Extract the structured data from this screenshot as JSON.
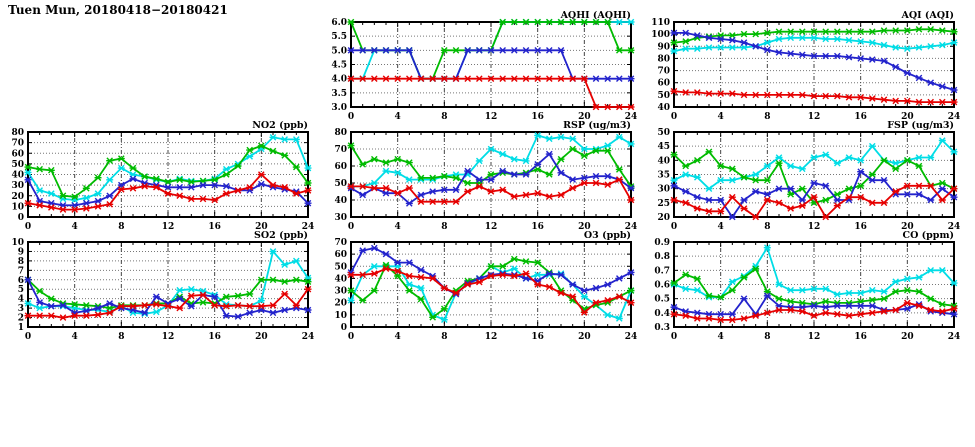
{
  "page_title": "Tuen Mun, 20180418−20180421",
  "colors": {
    "red": "#e60000",
    "green": "#00bb00",
    "blue": "#2323cc",
    "cyan": "#00dde6",
    "frame": "#000000",
    "hgrid": "#777777",
    "vgrid": "#444444",
    "background": "#ffffff"
  },
  "chart_data": [
    {
      "id": "aqhi",
      "type": "line",
      "title": "AQHI (AQHI)",
      "grid": {
        "col": 1,
        "row": 0
      },
      "x_range": [
        0,
        24
      ],
      "x_ticks": [
        0,
        4,
        8,
        12,
        16,
        20,
        24
      ],
      "y_range": [
        3.0,
        6.0
      ],
      "y_ticks": [
        3.0,
        3.5,
        4.0,
        4.5,
        5.0,
        5.5,
        6.0
      ],
      "y_decimals": 1,
      "series": [
        {
          "name": "cyan",
          "values": [
            4,
            4,
            5,
            5,
            5,
            5,
            4,
            4,
            4,
            4,
            5,
            5,
            5,
            6,
            6,
            6,
            6,
            6,
            6,
            6,
            6,
            6,
            6,
            6,
            6
          ]
        },
        {
          "name": "green",
          "values": [
            6,
            5,
            5,
            5,
            5,
            5,
            4,
            4,
            5,
            5,
            5,
            5,
            5,
            6,
            6,
            6,
            6,
            6,
            6,
            6,
            6,
            6,
            6,
            5,
            5
          ]
        },
        {
          "name": "blue",
          "values": [
            5,
            5,
            5,
            5,
            5,
            5,
            4,
            4,
            4,
            4,
            5,
            5,
            5,
            5,
            5,
            5,
            5,
            5,
            5,
            4,
            4,
            4,
            4,
            4,
            4
          ]
        },
        {
          "name": "red",
          "values": [
            4,
            4,
            4,
            4,
            4,
            4,
            4,
            4,
            4,
            4,
            4,
            4,
            4,
            4,
            4,
            4,
            4,
            4,
            4,
            4,
            4,
            3,
            3,
            3,
            3
          ]
        }
      ]
    },
    {
      "id": "aqi",
      "type": "line",
      "title": "AQI (AQI)",
      "grid": {
        "col": 2,
        "row": 0
      },
      "x_range": [
        0,
        24
      ],
      "x_ticks": [
        0,
        4,
        8,
        12,
        16,
        20,
        24
      ],
      "y_range": [
        40,
        110
      ],
      "y_ticks": [
        40,
        50,
        60,
        70,
        80,
        90,
        100,
        110
      ],
      "y_decimals": 0,
      "series": [
        {
          "name": "cyan",
          "values": [
            86,
            88,
            88,
            89,
            89,
            89,
            89,
            90,
            93,
            96,
            97,
            97,
            97,
            96,
            96,
            95,
            94,
            93,
            91,
            89,
            88,
            89,
            90,
            91,
            93
          ]
        },
        {
          "name": "green",
          "values": [
            93,
            94,
            97,
            98,
            99,
            99,
            100,
            100,
            101,
            102,
            102,
            102,
            102,
            102,
            102,
            102,
            102,
            102,
            103,
            103,
            103,
            104,
            104,
            103,
            102
          ]
        },
        {
          "name": "blue",
          "values": [
            101,
            101,
            99,
            97,
            96,
            95,
            93,
            90,
            87,
            85,
            84,
            83,
            82,
            82,
            82,
            81,
            80,
            79,
            78,
            73,
            68,
            64,
            60,
            57,
            54
          ]
        },
        {
          "name": "red",
          "values": [
            53,
            52,
            52,
            51,
            51,
            51,
            50,
            50,
            50,
            50,
            50,
            50,
            49,
            49,
            49,
            48,
            48,
            47,
            46,
            45,
            45,
            44,
            44,
            44,
            44
          ]
        }
      ]
    },
    {
      "id": "no2",
      "type": "line",
      "title": "NO2 (ppb)",
      "grid": {
        "col": 0,
        "row": 1
      },
      "x_range": [
        0,
        24
      ],
      "x_ticks": [
        0,
        4,
        8,
        12,
        16,
        20,
        24
      ],
      "y_range": [
        0,
        80
      ],
      "y_ticks": [
        0,
        10,
        20,
        30,
        40,
        50,
        60,
        70,
        80
      ],
      "y_decimals": 0,
      "series": [
        {
          "name": "cyan",
          "values": [
            42,
            25,
            22,
            17,
            16,
            18,
            22,
            35,
            46,
            40,
            38,
            35,
            33,
            36,
            34,
            34,
            36,
            45,
            50,
            57,
            64,
            75,
            73,
            73,
            46
          ]
        },
        {
          "name": "green",
          "values": [
            47,
            45,
            44,
            20,
            19,
            27,
            37,
            53,
            55,
            46,
            38,
            36,
            33,
            35,
            33,
            34,
            35,
            40,
            48,
            63,
            67,
            62,
            58,
            47,
            32
          ]
        },
        {
          "name": "blue",
          "values": [
            35,
            15,
            13,
            11,
            11,
            13,
            15,
            20,
            30,
            36,
            32,
            30,
            28,
            28,
            28,
            30,
            30,
            29,
            25,
            25,
            31,
            28,
            26,
            24,
            13
          ]
        },
        {
          "name": "red",
          "values": [
            13,
            11,
            9,
            7,
            7,
            8,
            10,
            12,
            26,
            27,
            29,
            28,
            22,
            20,
            17,
            17,
            16,
            22,
            25,
            28,
            40,
            30,
            28,
            22,
            25
          ]
        }
      ]
    },
    {
      "id": "rsp",
      "type": "line",
      "title": "RSP (ug/m3)",
      "grid": {
        "col": 1,
        "row": 1
      },
      "x_range": [
        0,
        24
      ],
      "x_ticks": [
        0,
        4,
        8,
        12,
        16,
        20,
        24
      ],
      "y_range": [
        30,
        80
      ],
      "y_ticks": [
        30,
        40,
        50,
        60,
        70,
        80
      ],
      "y_decimals": 0,
      "series": [
        {
          "name": "cyan",
          "values": [
            48,
            48,
            50,
            57,
            56,
            52,
            52,
            52,
            54,
            55,
            55,
            63,
            70,
            67,
            64,
            63,
            78,
            76,
            77,
            76,
            70,
            70,
            72,
            77,
            73
          ]
        },
        {
          "name": "green",
          "values": [
            72,
            61,
            64,
            62,
            64,
            62,
            53,
            53,
            54,
            53,
            50,
            50,
            55,
            56,
            55,
            56,
            58,
            55,
            64,
            70,
            66,
            69,
            69,
            58,
            48
          ]
        },
        {
          "name": "blue",
          "values": [
            47,
            43,
            47,
            44,
            44,
            38,
            43,
            45,
            46,
            46,
            57,
            52,
            52,
            57,
            55,
            55,
            61,
            67,
            56,
            52,
            53,
            54,
            54,
            52,
            47
          ]
        },
        {
          "name": "red",
          "values": [
            48,
            48,
            47,
            47,
            44,
            47,
            39,
            39,
            39,
            39,
            45,
            48,
            45,
            46,
            42,
            43,
            44,
            42,
            43,
            47,
            50,
            50,
            49,
            52,
            40
          ]
        }
      ]
    },
    {
      "id": "fsp",
      "type": "line",
      "title": "FSP (ug/m3)",
      "grid": {
        "col": 2,
        "row": 1
      },
      "x_range": [
        0,
        24
      ],
      "x_ticks": [
        0,
        4,
        8,
        12,
        16,
        20,
        24
      ],
      "y_range": [
        20,
        50
      ],
      "y_ticks": [
        20,
        25,
        30,
        35,
        40,
        45,
        50
      ],
      "y_decimals": 0,
      "series": [
        {
          "name": "cyan",
          "values": [
            33,
            35,
            34,
            30,
            33,
            33,
            34,
            35,
            38,
            41,
            38,
            37,
            41,
            42,
            39,
            41,
            40,
            45,
            40,
            39,
            40,
            41,
            41,
            47,
            43
          ]
        },
        {
          "name": "green",
          "values": [
            42,
            38,
            40,
            43,
            38,
            37,
            34,
            33,
            33,
            39,
            28,
            30,
            25,
            26,
            28,
            30,
            31,
            35,
            40,
            37,
            40,
            38,
            31,
            32,
            30
          ]
        },
        {
          "name": "blue",
          "values": [
            31,
            29,
            27,
            26,
            26,
            20,
            26,
            29,
            28,
            30,
            30,
            26,
            32,
            31,
            26,
            26,
            36,
            33,
            33,
            28,
            28,
            28,
            26,
            30,
            27
          ]
        },
        {
          "name": "red",
          "values": [
            26,
            25,
            23,
            22,
            22,
            27,
            23,
            20,
            26,
            25,
            23,
            24,
            27,
            20,
            24,
            27,
            27,
            25,
            25,
            29,
            31,
            31,
            31,
            26,
            30
          ]
        }
      ]
    },
    {
      "id": "so2",
      "type": "line",
      "title": "SO2 (ppb)",
      "grid": {
        "col": 0,
        "row": 2
      },
      "x_range": [
        0,
        24
      ],
      "x_ticks": [
        0,
        4,
        8,
        12,
        16,
        20,
        24
      ],
      "y_range": [
        1,
        10
      ],
      "y_ticks": [
        1,
        2,
        3,
        4,
        5,
        6,
        7,
        8,
        9,
        10
      ],
      "y_decimals": 0,
      "series": [
        {
          "name": "cyan",
          "values": [
            3.5,
            3,
            3.2,
            3.2,
            3,
            2.8,
            2.8,
            2.6,
            3.2,
            2.5,
            2.4,
            2.6,
            3.3,
            4.9,
            5,
            4.8,
            4.4,
            3.4,
            3.3,
            3.2,
            3.8,
            9,
            7.6,
            8,
            6.2
          ]
        },
        {
          "name": "green",
          "values": [
            6,
            4.8,
            4,
            3.5,
            3.4,
            3.3,
            3.2,
            3,
            3.3,
            3.3,
            3.3,
            3.5,
            3.5,
            4.2,
            3.5,
            3.6,
            3.5,
            4.2,
            4.3,
            4.5,
            6,
            6,
            5.8,
            6,
            5.8
          ]
        },
        {
          "name": "blue",
          "values": [
            6,
            3.6,
            3.2,
            3.3,
            2.5,
            2.7,
            3,
            3.5,
            3,
            2.8,
            2.5,
            4.2,
            3.5,
            4,
            3.2,
            4.4,
            4.2,
            2.2,
            2.1,
            2.5,
            2.8,
            2.5,
            2.8,
            3,
            2.8
          ]
        },
        {
          "name": "red",
          "values": [
            2.2,
            2.2,
            2.2,
            2,
            2.2,
            2.2,
            2.3,
            2.5,
            3.2,
            3.2,
            3.3,
            3.4,
            3.2,
            3,
            4.3,
            4.4,
            3.3,
            3.2,
            3.3,
            3.2,
            3.2,
            3.3,
            4.5,
            3.3,
            5
          ]
        }
      ]
    },
    {
      "id": "o3",
      "type": "line",
      "title": "O3 (ppb)",
      "grid": {
        "col": 1,
        "row": 2
      },
      "x_range": [
        0,
        24
      ],
      "x_ticks": [
        0,
        4,
        8,
        12,
        16,
        20,
        24
      ],
      "y_range": [
        0,
        70
      ],
      "y_ticks": [
        0,
        10,
        20,
        30,
        40,
        50,
        60,
        70
      ],
      "y_decimals": 0,
      "series": [
        {
          "name": "cyan",
          "values": [
            22,
            43,
            50,
            50,
            50,
            35,
            32,
            10,
            6,
            28,
            35,
            40,
            50,
            45,
            48,
            40,
            43,
            43,
            44,
            35,
            25,
            18,
            10,
            7,
            30
          ]
        },
        {
          "name": "green",
          "values": [
            30,
            22,
            30,
            51,
            42,
            30,
            23,
            8,
            15,
            30,
            38,
            40,
            50,
            50,
            56,
            54,
            53,
            45,
            30,
            22,
            15,
            18,
            20,
            25,
            30
          ]
        },
        {
          "name": "blue",
          "values": [
            45,
            63,
            65,
            60,
            53,
            53,
            47,
            42,
            32,
            27,
            36,
            40,
            43,
            44,
            43,
            40,
            38,
            44,
            43,
            35,
            30,
            32,
            35,
            40,
            45
          ]
        },
        {
          "name": "red",
          "values": [
            43,
            43,
            44,
            48,
            46,
            42,
            41,
            40,
            32,
            28,
            35,
            37,
            42,
            43,
            42,
            44,
            35,
            33,
            28,
            25,
            12,
            20,
            22,
            25,
            20
          ]
        }
      ]
    },
    {
      "id": "co",
      "type": "line",
      "title": "CO (ppm)",
      "grid": {
        "col": 2,
        "row": 2
      },
      "x_range": [
        0,
        24
      ],
      "x_ticks": [
        0,
        4,
        8,
        12,
        16,
        20,
        24
      ],
      "y_range": [
        0.3,
        0.9
      ],
      "y_ticks": [
        0.3,
        0.4,
        0.5,
        0.6,
        0.7,
        0.8,
        0.9
      ],
      "y_decimals": 1,
      "series": [
        {
          "name": "cyan",
          "values": [
            0.6,
            0.57,
            0.56,
            0.51,
            0.51,
            0.62,
            0.66,
            0.73,
            0.86,
            0.6,
            0.56,
            0.56,
            0.57,
            0.57,
            0.53,
            0.54,
            0.54,
            0.56,
            0.55,
            0.62,
            0.64,
            0.65,
            0.7,
            0.7,
            0.61
          ]
        },
        {
          "name": "green",
          "values": [
            0.61,
            0.67,
            0.64,
            0.52,
            0.51,
            0.56,
            0.65,
            0.71,
            0.55,
            0.5,
            0.48,
            0.47,
            0.46,
            0.48,
            0.47,
            0.47,
            0.48,
            0.49,
            0.5,
            0.55,
            0.56,
            0.55,
            0.5,
            0.46,
            0.45
          ]
        },
        {
          "name": "blue",
          "values": [
            0.44,
            0.41,
            0.4,
            0.39,
            0.39,
            0.39,
            0.5,
            0.39,
            0.52,
            0.45,
            0.44,
            0.44,
            0.45,
            0.44,
            0.45,
            0.45,
            0.45,
            0.45,
            0.42,
            0.42,
            0.43,
            0.46,
            0.41,
            0.4,
            0.39
          ]
        },
        {
          "name": "red",
          "values": [
            0.39,
            0.38,
            0.36,
            0.36,
            0.35,
            0.35,
            0.36,
            0.38,
            0.4,
            0.42,
            0.42,
            0.41,
            0.38,
            0.4,
            0.39,
            0.38,
            0.39,
            0.4,
            0.41,
            0.42,
            0.47,
            0.45,
            0.42,
            0.41,
            0.43
          ]
        }
      ]
    }
  ]
}
